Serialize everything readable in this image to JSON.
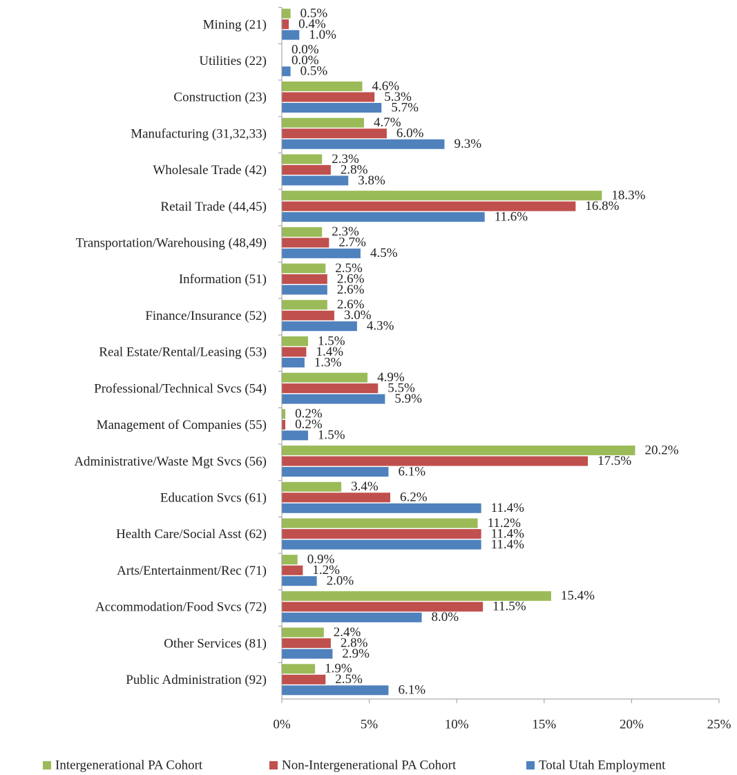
{
  "chart_data": {
    "type": "hbar",
    "categories": [
      "Mining (21)",
      "Utilities (22)",
      "Construction (23)",
      "Manufacturing (31,32,33)",
      "Wholesale Trade (42)",
      "Retail Trade (44,45)",
      "Transportation/Warehousing (48,49)",
      "Information (51)",
      "Finance/Insurance (52)",
      "Real Estate/Rental/Leasing (53)",
      "Professional/Technical Svcs (54)",
      "Management of Companies (55)",
      "Administrative/Waste Mgt Svcs (56)",
      "Education Svcs (61)",
      "Health Care/Social Asst (62)",
      "Arts/Entertainment/Rec (71)",
      "Accommodation/Food Svcs (72)",
      "Other Services (81)",
      "Public Administration (92)"
    ],
    "series": [
      {
        "name": "Intergenerational PA Cohort",
        "color": "#9bbb59",
        "values": [
          0.5,
          0.0,
          4.6,
          4.7,
          2.3,
          18.3,
          2.3,
          2.5,
          2.6,
          1.5,
          4.9,
          0.2,
          20.2,
          3.4,
          11.2,
          0.9,
          15.4,
          2.4,
          1.9
        ],
        "value_labels": [
          "0.5%",
          "0.0%",
          "4.6%",
          "4.7%",
          "2.3%",
          "18.3%",
          "2.3%",
          "2.5%",
          "2.6%",
          "1.5%",
          "4.9%",
          "0.2%",
          "20.2%",
          "3.4%",
          "11.2%",
          "0.9%",
          "15.4%",
          "2.4%",
          "1.9%"
        ]
      },
      {
        "name": "Non-Intergenerational PA Cohort",
        "color": "#c0504d",
        "values": [
          0.4,
          0.0,
          5.3,
          6.0,
          2.8,
          16.8,
          2.7,
          2.6,
          3.0,
          1.4,
          5.5,
          0.2,
          17.5,
          6.2,
          11.4,
          1.2,
          11.5,
          2.8,
          2.5
        ],
        "value_labels": [
          "0.4%",
          "0.0%",
          "5.3%",
          "6.0%",
          "2.8%",
          "16.8%",
          "2.7%",
          "2.6%",
          "3.0%",
          "1.4%",
          "5.5%",
          "0.2%",
          "17.5%",
          "6.2%",
          "11.4%",
          "1.2%",
          "11.5%",
          "2.8%",
          "2.5%"
        ]
      },
      {
        "name": "Total Utah Employment",
        "color": "#4f81bd",
        "values": [
          1.0,
          0.5,
          5.7,
          9.3,
          3.8,
          11.6,
          4.5,
          2.6,
          4.3,
          1.3,
          5.9,
          1.5,
          6.1,
          11.4,
          11.4,
          2.0,
          8.0,
          2.9,
          6.1
        ],
        "value_labels": [
          "1.0%",
          "0.5%",
          "5.7%",
          "9.3%",
          "3.8%",
          "11.6%",
          "4.5%",
          "2.6%",
          "4.3%",
          "1.3%",
          "5.9%",
          "1.5%",
          "6.1%",
          "11.4%",
          "11.4%",
          "2.0%",
          "8.0%",
          "2.9%",
          "6.1%"
        ]
      }
    ],
    "xlim": [
      0,
      25
    ],
    "xticks": [
      {
        "value": 0,
        "label": "0%"
      },
      {
        "value": 5,
        "label": "5%"
      },
      {
        "value": 10,
        "label": "10%"
      },
      {
        "value": 15,
        "label": "15%"
      },
      {
        "value": 20,
        "label": "20%"
      },
      {
        "value": 25,
        "label": "25%"
      }
    ],
    "grid": false,
    "legend": "bottom"
  }
}
